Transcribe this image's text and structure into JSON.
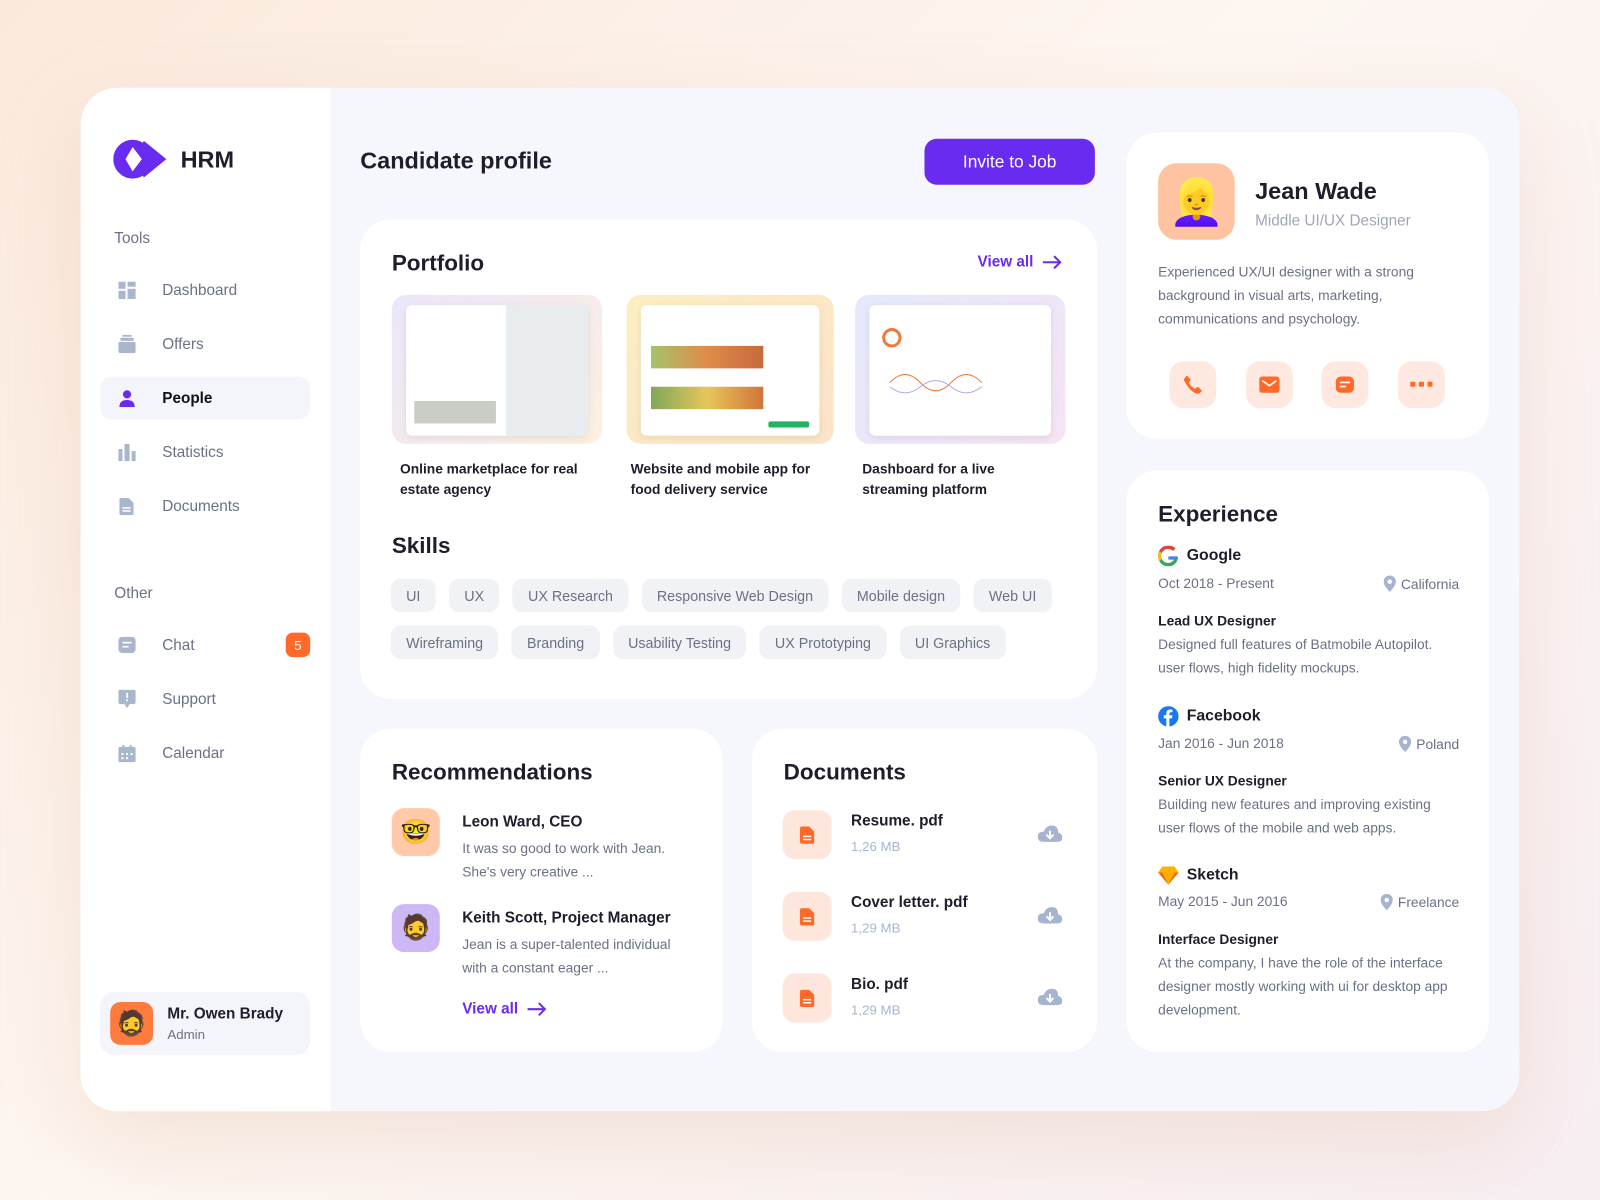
{
  "app": {
    "name": "HRM"
  },
  "sidebar": {
    "tools_label": "Tools",
    "tools": [
      {
        "label": "Dashboard",
        "icon": "grid-icon"
      },
      {
        "label": "Offers",
        "icon": "stack-icon"
      },
      {
        "label": "People",
        "icon": "person-icon",
        "active": true
      },
      {
        "label": "Statistics",
        "icon": "bar-chart-icon"
      },
      {
        "label": "Documents",
        "icon": "document-icon"
      }
    ],
    "other_label": "Other",
    "other": [
      {
        "label": "Chat",
        "icon": "chat-icon",
        "badge": "5"
      },
      {
        "label": "Support",
        "icon": "alert-icon"
      },
      {
        "label": "Calendar",
        "icon": "calendar-icon"
      }
    ],
    "user": {
      "name": "Mr. Owen Brady",
      "role": "Admin"
    }
  },
  "header": {
    "title": "Candidate profile",
    "invite_label": "Invite to Job"
  },
  "portfolio": {
    "title": "Portfolio",
    "view_all": "View all",
    "items": [
      {
        "caption": "Online marketplace for real estate agency"
      },
      {
        "caption": "Website and mobile app for food delivery service"
      },
      {
        "caption": "Dashboard for a live streaming platform"
      }
    ]
  },
  "skills": {
    "title": "Skills",
    "items": [
      "UI",
      "UX",
      "UX Research",
      "Responsive Web Design",
      "Mobile design",
      "Web UI",
      "Wireframing",
      "Branding",
      "Usability Testing",
      "UX Prototyping",
      "UI Graphics"
    ]
  },
  "recommendations": {
    "title": "Recommendations",
    "view_all": "View all",
    "items": [
      {
        "name": "Leon Ward, CEO",
        "text": "It was so good to work with Jean. She's very creative ..."
      },
      {
        "name": "Keith Scott, Project Manager",
        "text": "Jean is a super-talented individual with a constant eager ..."
      }
    ]
  },
  "documents": {
    "title": "Documents",
    "items": [
      {
        "name": "Resume. pdf",
        "size": "1,26 MB"
      },
      {
        "name": "Cover letter. pdf",
        "size": "1,29 MB"
      },
      {
        "name": "Bio. pdf",
        "size": "1,29 MB"
      }
    ]
  },
  "profile": {
    "name": "Jean Wade",
    "title": "Middle UI/UX Designer",
    "bio": "Experienced UX/UI designer with a strong background in visual arts, marketing, communications and psychology.",
    "actions": [
      "phone-icon",
      "mail-icon",
      "message-icon",
      "more-icon"
    ]
  },
  "experience": {
    "title": "Experience",
    "items": [
      {
        "company": "Google",
        "period": "Oct 2018 - Present",
        "location": "California",
        "role": "Lead UX Designer",
        "desc": "Designed full features of Batmobile Autopilot. user flows, high fidelity mockups."
      },
      {
        "company": "Facebook",
        "period": "Jan 2016 - Jun 2018",
        "location": "Poland",
        "role": "Senior UX Designer",
        "desc": "Building new features and improving existing user flows of the mobile and web apps."
      },
      {
        "company": "Sketch",
        "period": "May 2015 - Jun 2016",
        "location": "Freelance",
        "role": "Interface Designer",
        "desc": "At the company, I have the role of the interface designer mostly working with ui for desktop app development."
      }
    ]
  },
  "colors": {
    "accent": "#6a2bf0",
    "orange": "#ff6a2b",
    "muted": "#6b7185"
  }
}
